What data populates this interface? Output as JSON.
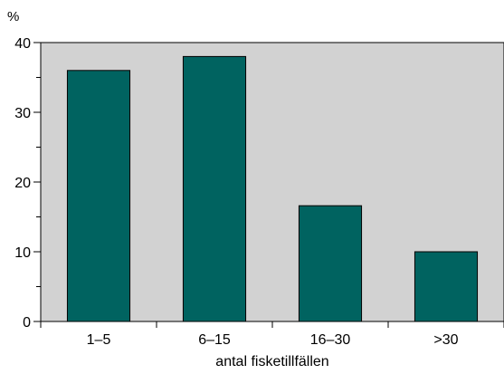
{
  "chart_data": {
    "type": "bar",
    "title": "",
    "ylabel": "%",
    "xlabel": "antal fisketillfällen",
    "categories": [
      "1–5",
      "6–15",
      "16–30",
      ">30"
    ],
    "values": [
      36,
      38,
      16.6,
      10
    ],
    "ylim": [
      0,
      40
    ],
    "yticks": [
      0,
      10,
      20,
      30,
      40
    ],
    "grid": false,
    "legend": "none",
    "bar_color": "#006360",
    "plot_background": "#d2d2d2"
  }
}
